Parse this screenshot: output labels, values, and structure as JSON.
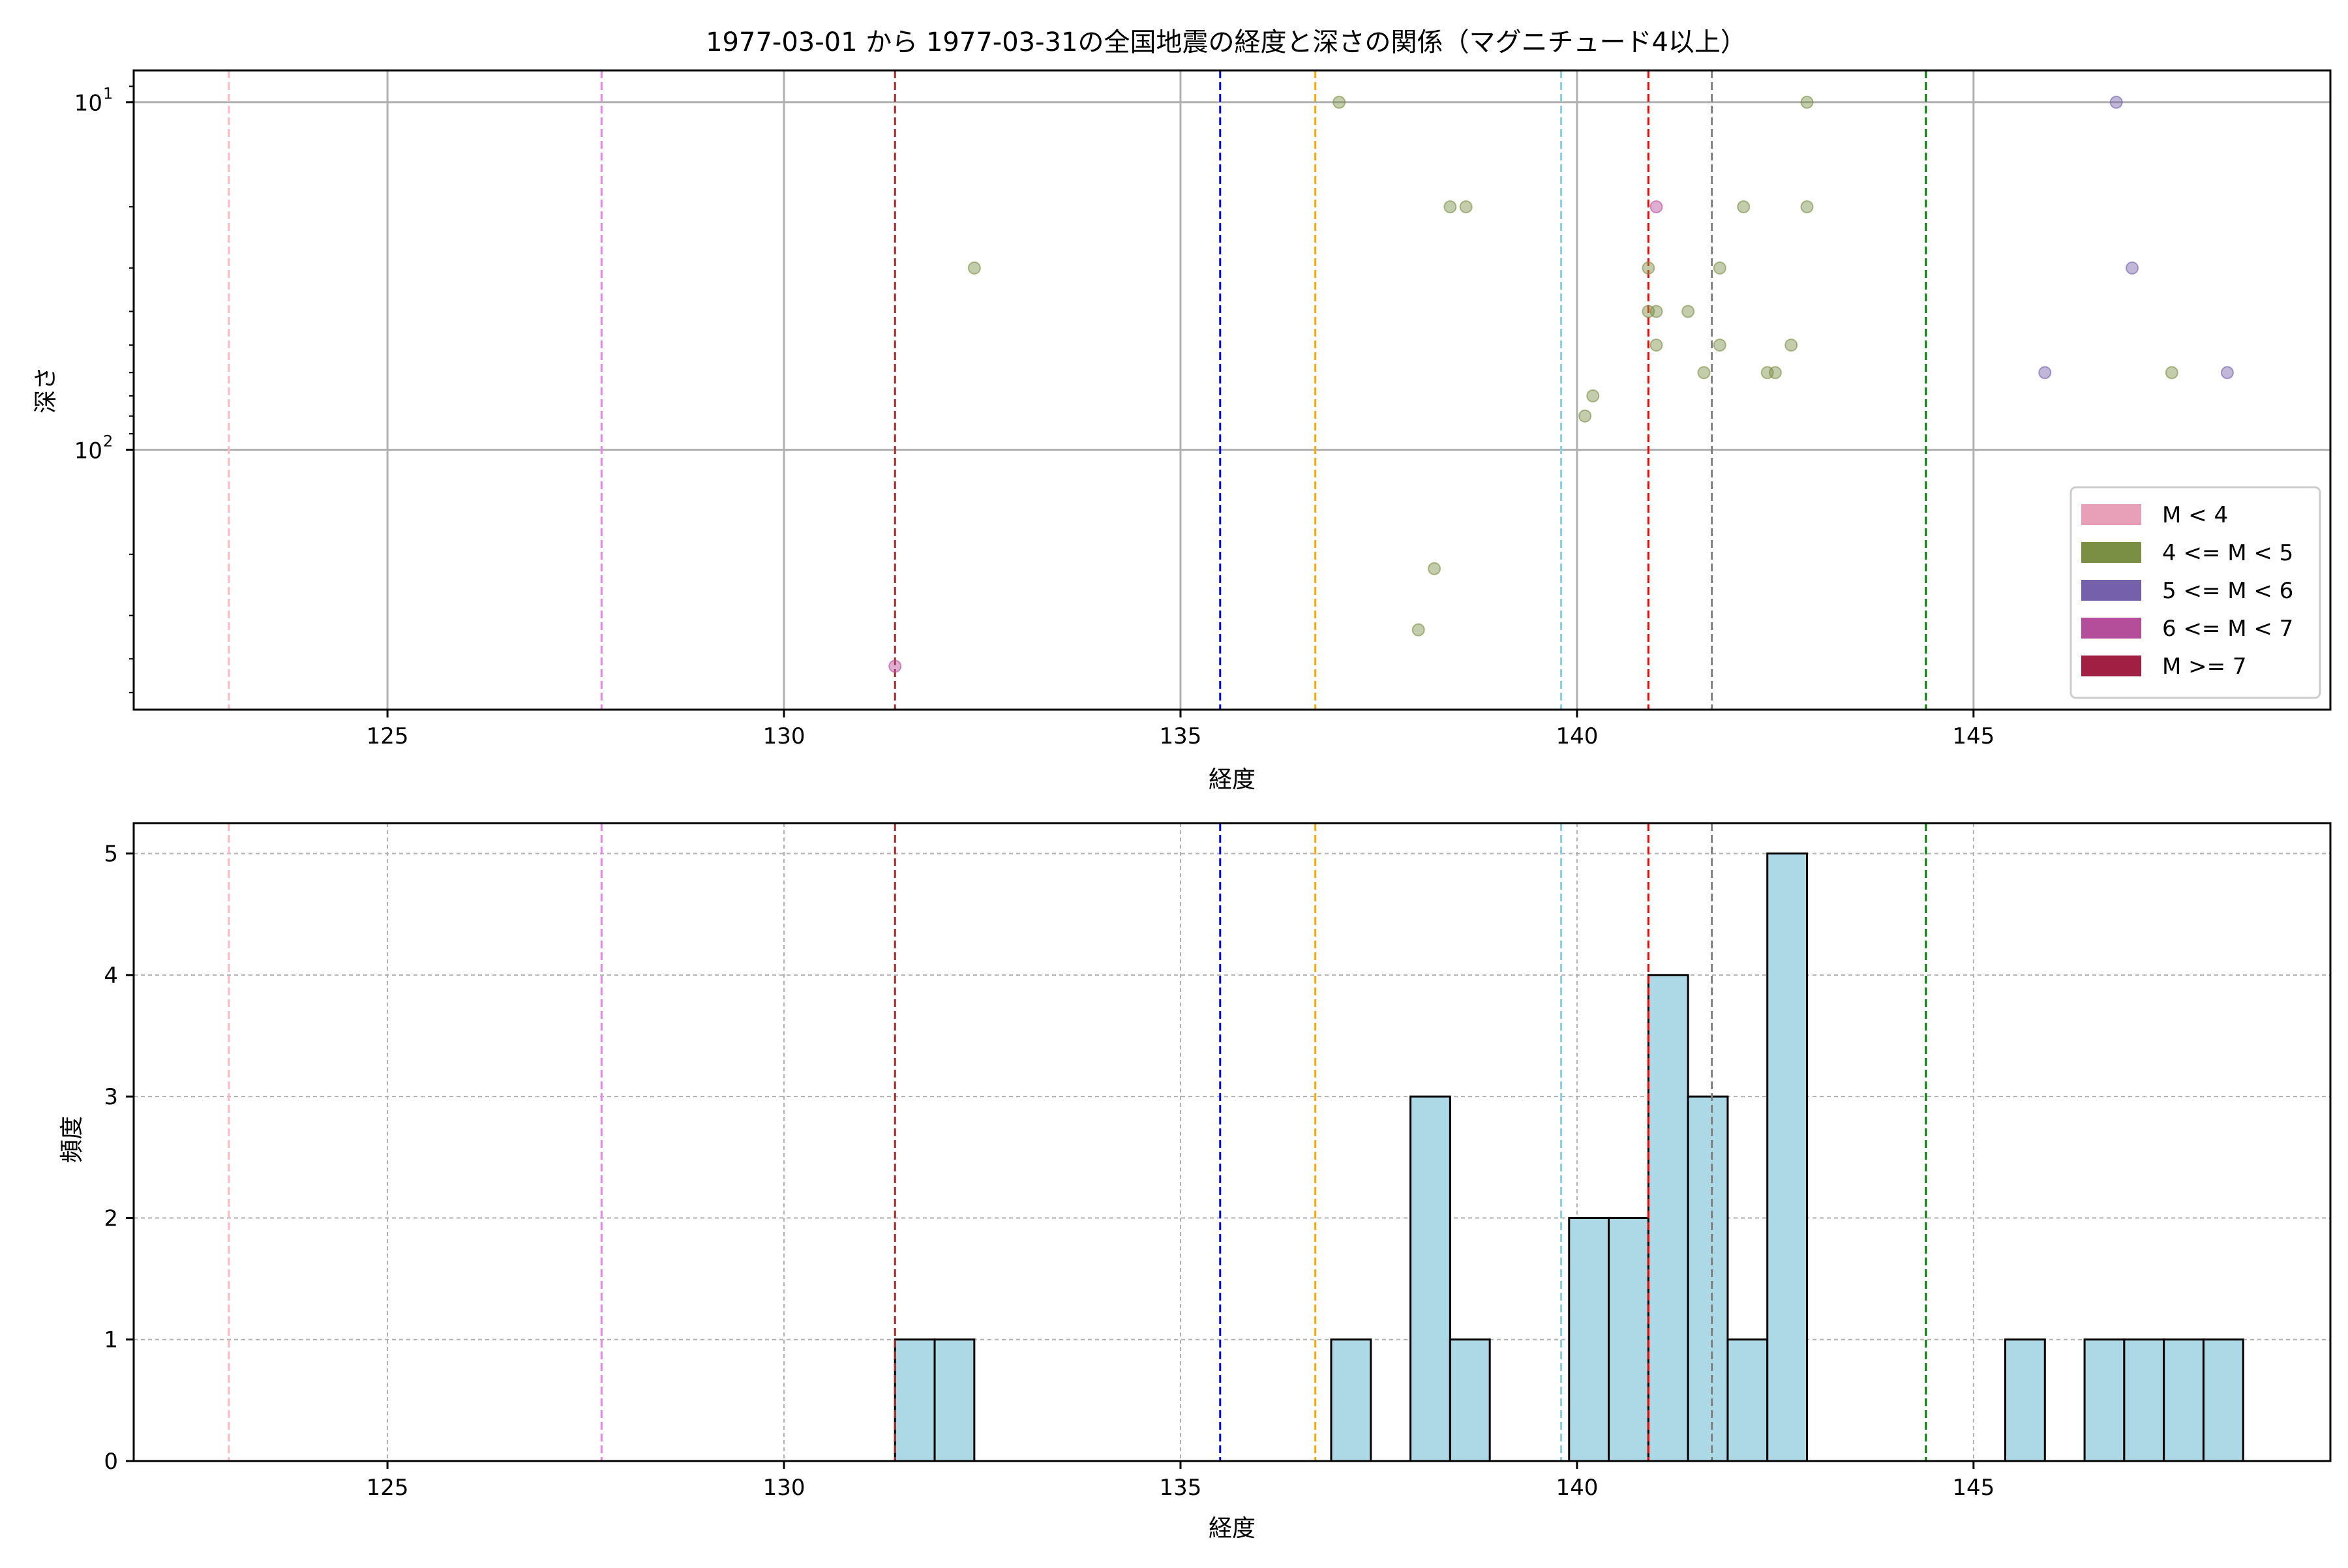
{
  "chart_data": [
    {
      "type": "scatter",
      "title": "1977-03-01 から 1977-03-31の全国地震の経度と深さの関係（マグニチュード4以上）",
      "xlabel": "経度",
      "ylabel": "深さ",
      "xlim": [
        121.8,
        149.5
      ],
      "ylim": [
        560,
        8.1
      ],
      "yscale": "log",
      "y_inverted": true,
      "xticks": [
        125,
        130,
        135,
        140,
        145
      ],
      "yticks": [
        {
          "value": 10,
          "base": "10",
          "exp": "1"
        },
        {
          "value": 100,
          "base": "10",
          "exp": "2"
        }
      ],
      "grid": true,
      "legend_position": "lower-right",
      "legend": [
        {
          "label": "M < 4",
          "color": "#e8a0b8"
        },
        {
          "label": "4 <= M < 5",
          "color": "#7b8f44"
        },
        {
          "label": "5 <= M < 6",
          "color": "#7460ab"
        },
        {
          "label": "6 <= M < 7",
          "color": "#b54e9a"
        },
        {
          "label": "M >= 7",
          "color": "#a01f42"
        }
      ],
      "vlines": [
        {
          "x": 123.0,
          "color": "#ffb6c1"
        },
        {
          "x": 127.7,
          "color": "#ee82ee"
        },
        {
          "x": 131.4,
          "color": "#a52a2a"
        },
        {
          "x": 135.5,
          "color": "#0000ff"
        },
        {
          "x": 136.7,
          "color": "#ffa500"
        },
        {
          "x": 139.8,
          "color": "#87ceeb"
        },
        {
          "x": 140.9,
          "color": "#ff0000"
        },
        {
          "x": 141.7,
          "color": "#808080"
        },
        {
          "x": 144.4,
          "color": "#008000"
        }
      ],
      "series": [
        {
          "category": "4 <= M < 5",
          "color": "#7b8f44",
          "points": [
            {
              "x": 132.4,
              "y": 30
            },
            {
              "x": 137.0,
              "y": 10
            },
            {
              "x": 138.4,
              "y": 20
            },
            {
              "x": 138.6,
              "y": 20
            },
            {
              "x": 138.0,
              "y": 330
            },
            {
              "x": 138.2,
              "y": 220
            },
            {
              "x": 140.1,
              "y": 80
            },
            {
              "x": 140.2,
              "y": 70
            },
            {
              "x": 140.9,
              "y": 30
            },
            {
              "x": 140.9,
              "y": 40
            },
            {
              "x": 141.0,
              "y": 40
            },
            {
              "x": 141.0,
              "y": 50
            },
            {
              "x": 141.4,
              "y": 40
            },
            {
              "x": 141.6,
              "y": 60
            },
            {
              "x": 141.8,
              "y": 50
            },
            {
              "x": 141.8,
              "y": 30
            },
            {
              "x": 142.1,
              "y": 20
            },
            {
              "x": 142.4,
              "y": 60
            },
            {
              "x": 142.5,
              "y": 60
            },
            {
              "x": 142.7,
              "y": 50
            },
            {
              "x": 142.9,
              "y": 10
            },
            {
              "x": 142.9,
              "y": 20
            },
            {
              "x": 147.5,
              "y": 60
            }
          ]
        },
        {
          "category": "5 <= M < 6",
          "color": "#7460ab",
          "points": [
            {
              "x": 145.9,
              "y": 60
            },
            {
              "x": 146.8,
              "y": 10
            },
            {
              "x": 147.0,
              "y": 30
            },
            {
              "x": 148.2,
              "y": 60
            }
          ]
        },
        {
          "category": "6 <= M < 7",
          "color": "#b54e9a",
          "points": [
            {
              "x": 131.4,
              "y": 420
            },
            {
              "x": 141.0,
              "y": 20
            }
          ]
        }
      ]
    },
    {
      "type": "bar",
      "title": "",
      "xlabel": "経度",
      "ylabel": "頻度",
      "xlim": [
        121.8,
        149.5
      ],
      "ylim": [
        0,
        5.25
      ],
      "xticks": [
        125,
        130,
        135,
        140,
        145
      ],
      "yticks": [
        0,
        1,
        2,
        3,
        4,
        5
      ],
      "grid": true,
      "bar_color": "#add8e6",
      "bins": [
        {
          "x0": 131.4,
          "x1": 131.9,
          "value": 1
        },
        {
          "x0": 131.9,
          "x1": 132.4,
          "value": 1
        },
        {
          "x0": 136.9,
          "x1": 137.4,
          "value": 1
        },
        {
          "x0": 137.9,
          "x1": 138.4,
          "value": 3
        },
        {
          "x0": 138.4,
          "x1": 138.9,
          "value": 1
        },
        {
          "x0": 139.9,
          "x1": 140.4,
          "value": 2
        },
        {
          "x0": 140.4,
          "x1": 140.9,
          "value": 2
        },
        {
          "x0": 140.9,
          "x1": 141.4,
          "value": 4
        },
        {
          "x0": 141.4,
          "x1": 141.9,
          "value": 3
        },
        {
          "x0": 141.9,
          "x1": 142.4,
          "value": 1
        },
        {
          "x0": 142.4,
          "x1": 142.9,
          "value": 5
        },
        {
          "x0": 145.4,
          "x1": 145.9,
          "value": 1
        },
        {
          "x0": 146.4,
          "x1": 146.9,
          "value": 1
        },
        {
          "x0": 146.9,
          "x1": 147.4,
          "value": 1
        },
        {
          "x0": 147.4,
          "x1": 147.9,
          "value": 1
        },
        {
          "x0": 147.9,
          "x1": 148.4,
          "value": 1
        }
      ],
      "vlines": [
        {
          "x": 123.0,
          "color": "#ffb6c1"
        },
        {
          "x": 127.7,
          "color": "#ee82ee"
        },
        {
          "x": 131.4,
          "color": "#a52a2a"
        },
        {
          "x": 135.5,
          "color": "#0000ff"
        },
        {
          "x": 136.7,
          "color": "#ffa500"
        },
        {
          "x": 139.8,
          "color": "#87ceeb"
        },
        {
          "x": 140.9,
          "color": "#ff0000"
        },
        {
          "x": 141.7,
          "color": "#808080"
        },
        {
          "x": 144.4,
          "color": "#008000"
        }
      ]
    }
  ]
}
